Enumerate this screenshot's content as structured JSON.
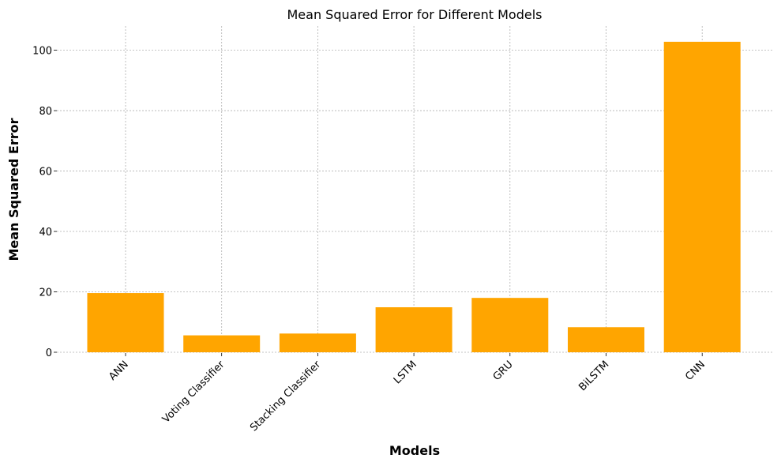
{
  "chart_data": {
    "type": "bar",
    "title": "Mean Squared Error for Different Models",
    "xlabel": "Models",
    "ylabel": "Mean Squared Error",
    "categories": [
      "ANN",
      "Voting Classifier",
      "Stacking Classifier",
      "LSTM",
      "GRU",
      "BiLSTM",
      "CNN"
    ],
    "values": [
      19.6,
      5.6,
      6.2,
      14.9,
      18.0,
      8.3,
      102.8
    ],
    "yticks": [
      0,
      20,
      40,
      60,
      80,
      100
    ],
    "ylim": [
      0,
      108
    ],
    "grid": true,
    "bar_color": "#ffa500"
  }
}
